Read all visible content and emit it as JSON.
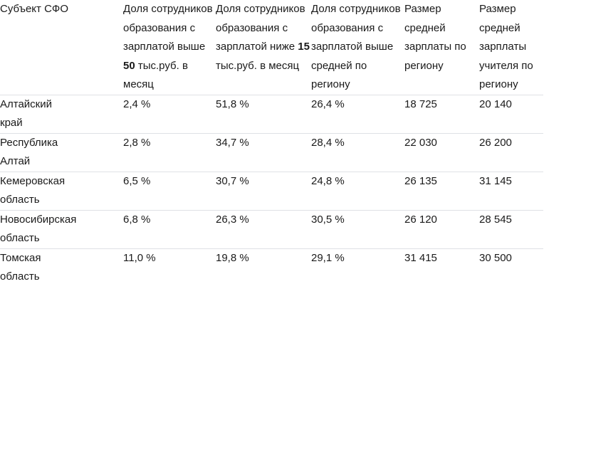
{
  "colors": {
    "text": "#1a1a1a",
    "divider": "#dfe1e5",
    "background": "#ffffff"
  },
  "table": {
    "headers": {
      "region": "Субъект СФО",
      "share_above_50k": {
        "pre": "Доля сотрудников образования с зарплатой выше",
        "bold": "50",
        "post": "тыс.руб. в месяц"
      },
      "share_below_15k": {
        "pre": "Доля сотрудников образования с зарплатой ниже",
        "bold": "15",
        "post": "тыс.руб. в месяц"
      },
      "share_above_regional_avg": "Доля сотрудников образования с зарплатой выше средней по региону",
      "avg_salary_region": "Размер средней зарплаты по региону",
      "avg_salary_teacher": "Размер средней зарплаты учителя по региону"
    },
    "rows": [
      {
        "region": "Алтайский край",
        "share_above_50k": "2,4 %",
        "share_below_15k": "51,8 %",
        "share_above_regional_avg": "26,4 %",
        "avg_salary_region": "18 725",
        "avg_salary_teacher": "20 140"
      },
      {
        "region": "Республика Алтай",
        "share_above_50k": "2,8 %",
        "share_below_15k": "34,7 %",
        "share_above_regional_avg": "28,4 %",
        "avg_salary_region": "22 030",
        "avg_salary_teacher": "26 200"
      },
      {
        "region": "Кемеровская область",
        "share_above_50k": "6,5 %",
        "share_below_15k": "30,7 %",
        "share_above_regional_avg": "24,8 %",
        "avg_salary_region": "26 135",
        "avg_salary_teacher": "31 145"
      },
      {
        "region": "Новосибирская область",
        "share_above_50k": "6,8 %",
        "share_below_15k": "26,3 %",
        "share_above_regional_avg": "30,5 %",
        "avg_salary_region": "26 120",
        "avg_salary_teacher": "28 545"
      },
      {
        "region": "Томская область",
        "share_above_50k": "11,0 %",
        "share_below_15k": "19,8 %",
        "share_above_regional_avg": "29,1 %",
        "avg_salary_region": "31 415",
        "avg_salary_teacher": "30 500"
      }
    ]
  },
  "chart_data": {
    "type": "table",
    "title": "",
    "columns": [
      "Субъект СФО",
      "Доля сотрудников образования с зарплатой выше 50 тыс.руб. в месяц",
      "Доля сотрудников образования с зарплатой ниже 15 тыс.руб. в месяц",
      "Доля сотрудников образования с зарплатой выше средней по региону",
      "Размер средней зарплаты по региону",
      "Размер средней зарплаты учителя по региону"
    ],
    "rows": [
      [
        "Алтайский край",
        "2,4 %",
        "51,8 %",
        "26,4 %",
        "18 725",
        "20 140"
      ],
      [
        "Республика Алтай",
        "2,8 %",
        "34,7 %",
        "28,4 %",
        "22 030",
        "26 200"
      ],
      [
        "Кемеровская область",
        "6,5 %",
        "30,7 %",
        "24,8 %",
        "26 135",
        "31 145"
      ],
      [
        "Новосибирская область",
        "6,8 %",
        "26,3 %",
        "30,5 %",
        "26 120",
        "28 545"
      ],
      [
        "Томская область",
        "11,0 %",
        "19,8 %",
        "29,1 %",
        "31 415",
        "30 500"
      ]
    ],
    "numeric_values": {
      "share_above_50k_pct": [
        2.4,
        2.8,
        6.5,
        6.8,
        11.0
      ],
      "share_below_15k_pct": [
        51.8,
        34.7,
        30.7,
        26.3,
        19.8
      ],
      "share_above_regional_avg_pct": [
        26.4,
        28.4,
        24.8,
        30.5,
        29.1
      ],
      "avg_salary_region_rub": [
        18725,
        22030,
        26135,
        26120,
        31415
      ],
      "avg_salary_teacher_rub": [
        20140,
        26200,
        31145,
        28545,
        30500
      ]
    }
  }
}
